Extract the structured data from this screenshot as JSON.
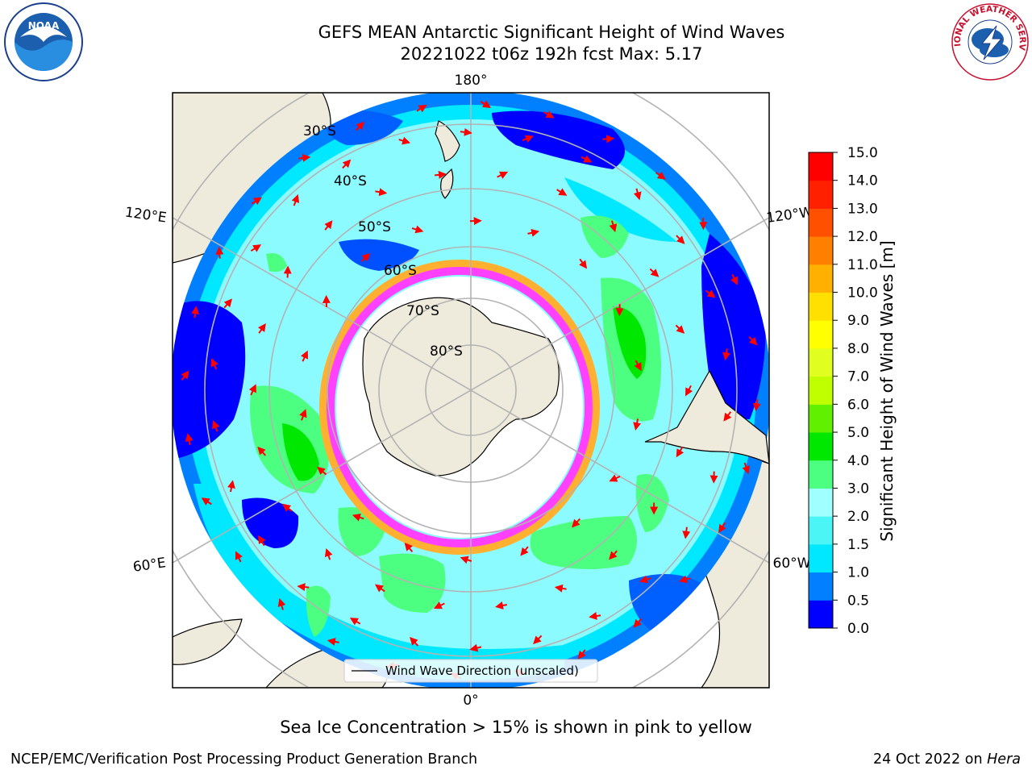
{
  "title_line1": "GEFS MEAN Antarctic Significant Height of Wind Waves",
  "title_line2": "20221022 t06z 192h fcst   Max: 5.17",
  "map": {
    "projection": "south-polar-stereographic",
    "lon_labels": [
      "180°",
      "120°E",
      "120°W",
      "60°E",
      "60°W",
      "0°"
    ],
    "lat_labels": [
      "30°S",
      "40°S",
      "50°S",
      "60°S",
      "70°S",
      "80°S"
    ],
    "legend_label": "Wind Wave Direction (unscaled)",
    "arrow_color": "#ff0000",
    "land_color": "#efebdc"
  },
  "colorbar": {
    "title": "Significant Height of Wind Waves [m]",
    "ticks": [
      "0.0",
      "0.5",
      "1.0",
      "1.5",
      "2.0",
      "3.0",
      "4.0",
      "5.0",
      "6.0",
      "7.0",
      "8.0",
      "9.0",
      "10.0",
      "11.0",
      "12.0",
      "13.0",
      "14.0",
      "15.0"
    ],
    "colors": [
      "#0000ff",
      "#0080ff",
      "#00e8ff",
      "#4cf5f5",
      "#a0ffff",
      "#4cff80",
      "#00e800",
      "#60f000",
      "#c0ff00",
      "#e0ff20",
      "#ffff00",
      "#ffe000",
      "#ffb000",
      "#ff8000",
      "#ff5000",
      "#ff2000",
      "#ff0000"
    ]
  },
  "note": "Sea Ice Concentration > 15% is shown in pink to yellow",
  "footer_left": "NCEP/EMC/Verification Post Processing Product Generation Branch",
  "footer_right_date": "24 Oct 2022 on",
  "footer_right_machine": "Hera",
  "logos": {
    "left_text": "NOAA",
    "right_text": "NATIONAL WEATHER SERVICE"
  }
}
